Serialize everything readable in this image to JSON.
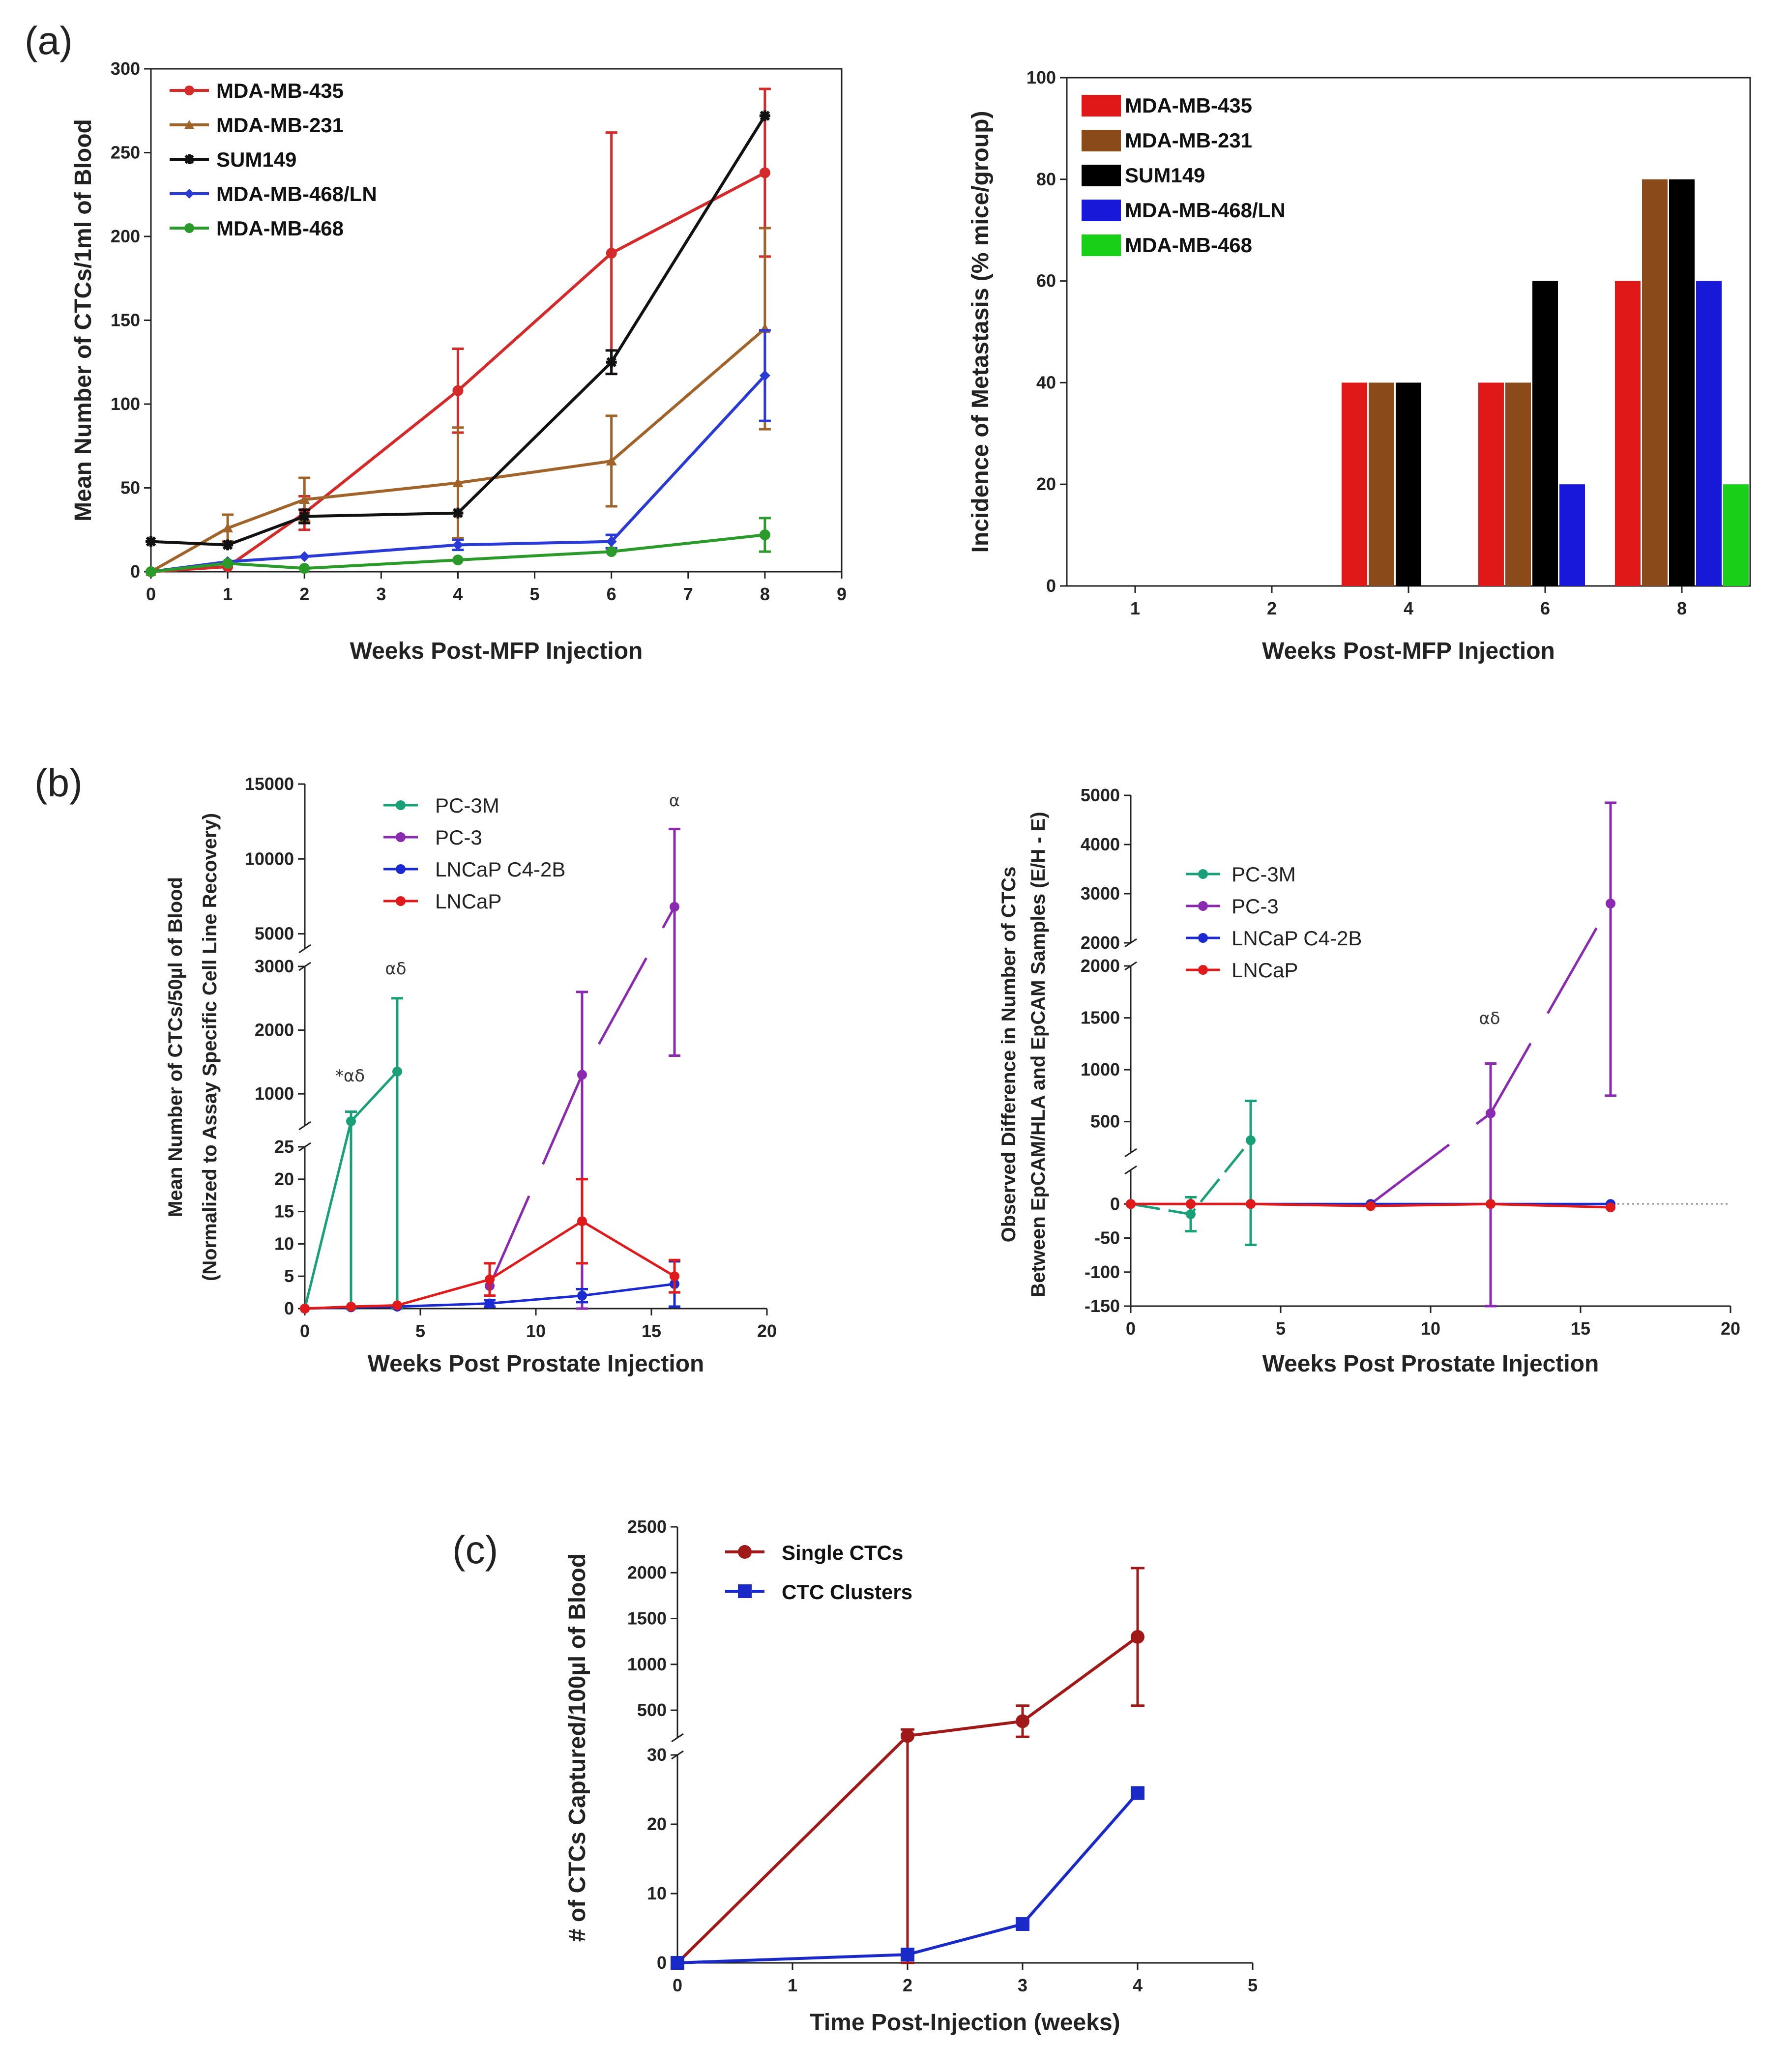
{
  "panels": {
    "a": "(a)",
    "b": "(b)",
    "c": "(c)"
  },
  "chart_data": [
    {
      "id": "a_left",
      "type": "line",
      "xlabel": "Weeks Post-MFP Injection",
      "ylabel": "Mean Number of CTCs/1ml of Blood",
      "xlim": [
        0,
        9
      ],
      "ylim": [
        0,
        300
      ],
      "xticks": [
        "0",
        "1",
        "2",
        "3",
        "4",
        "5",
        "6",
        "7",
        "8",
        "9"
      ],
      "yticks": [
        "0",
        "50",
        "100",
        "150",
        "200",
        "250",
        "300"
      ],
      "legend": "top-left",
      "series": [
        {
          "name": "MDA-MB-435",
          "color": "#d42a2a",
          "marker": "circle",
          "x": [
            0,
            1,
            2,
            4,
            6,
            8
          ],
          "y": [
            0,
            3,
            35,
            108,
            190,
            238
          ],
          "err": [
            0,
            0,
            10,
            25,
            72,
            50
          ]
        },
        {
          "name": "MDA-MB-231",
          "color": "#a0642a",
          "marker": "triangle",
          "x": [
            0,
            1,
            2,
            4,
            6,
            8
          ],
          "y": [
            0,
            26,
            43,
            53,
            66,
            145
          ],
          "err": [
            0,
            8,
            13,
            33,
            27,
            60
          ]
        },
        {
          "name": "SUM149",
          "color": "#111111",
          "marker": "star",
          "x": [
            0,
            1,
            2,
            4,
            8,
            6
          ],
          "y": [
            18,
            16,
            33,
            35,
            272,
            125
          ],
          "err": [
            0,
            0,
            4,
            0,
            0,
            7
          ]
        },
        {
          "name": "MDA-MB-468/LN",
          "color": "#2a3ad4",
          "marker": "diamond",
          "x": [
            0,
            1,
            2,
            4,
            6,
            8
          ],
          "y": [
            0,
            6,
            9,
            16,
            18,
            117
          ],
          "err": [
            0,
            0,
            0,
            3,
            4,
            27
          ]
        },
        {
          "name": "MDA-MB-468",
          "color": "#2a9a2a",
          "marker": "circle",
          "x": [
            0,
            1,
            2,
            4,
            6,
            8
          ],
          "y": [
            0,
            5,
            2,
            7,
            12,
            22
          ],
          "err": [
            0,
            0,
            0,
            0,
            0,
            10
          ]
        }
      ]
    },
    {
      "id": "a_right",
      "type": "bar",
      "xlabel": "Weeks Post-MFP Injection",
      "ylabel": "Incidence of Metastasis (% mice/group)",
      "categories": [
        "1",
        "2",
        "4",
        "6",
        "8"
      ],
      "ylim": [
        0,
        100
      ],
      "yticks": [
        "0",
        "20",
        "40",
        "60",
        "80",
        "100"
      ],
      "legend": "top-left",
      "series": [
        {
          "name": "MDA-MB-435",
          "color": "#e01818",
          "values": [
            0,
            0,
            40,
            40,
            60
          ]
        },
        {
          "name": "MDA-MB-231",
          "color": "#8a4a1a",
          "values": [
            0,
            0,
            40,
            40,
            80
          ]
        },
        {
          "name": "SUM149",
          "color": "#000000",
          "values": [
            0,
            0,
            40,
            60,
            80
          ]
        },
        {
          "name": "MDA-MB-468/LN",
          "color": "#1818d8",
          "values": [
            0,
            0,
            0,
            20,
            60
          ]
        },
        {
          "name": "MDA-MB-468",
          "color": "#18d018",
          "values": [
            0,
            0,
            0,
            0,
            20
          ]
        }
      ]
    },
    {
      "id": "b_left",
      "type": "line",
      "xlabel": "Weeks Post Prostate Injection",
      "ylabel": "Mean Number of CTCs/50µl of Blood",
      "ylabel2": "(Normalized to Assay Specific Cell Line Recovery)",
      "xlim": [
        0,
        20
      ],
      "xticks": [
        "0",
        "5",
        "10",
        "15",
        "20"
      ],
      "y_segments": [
        {
          "range": [
            0,
            25
          ],
          "ticks": [
            "0",
            "5",
            "10",
            "15",
            "20",
            "25"
          ]
        },
        {
          "range": [
            500,
            3000
          ],
          "ticks": [
            "1000",
            "2000",
            "3000"
          ]
        },
        {
          "range": [
            4000,
            15000
          ],
          "ticks": [
            "5000",
            "10000",
            "15000"
          ]
        }
      ],
      "annotations": [
        "*αδ",
        "αδ",
        "α"
      ],
      "legend": "top-left",
      "series": [
        {
          "name": "PC-3M",
          "color": "#1aa078",
          "x": [
            0,
            2,
            4
          ],
          "y": [
            0,
            570,
            1350
          ],
          "err": [
            0,
            150,
            1150
          ]
        },
        {
          "name": "PC-3",
          "color": "#8a2ab0",
          "x": [
            8,
            12,
            16
          ],
          "y": [
            3.5,
            1300,
            6800
          ],
          "err": [
            0,
            1300,
            5200
          ]
        },
        {
          "name": "LNCaP C4-2B",
          "color": "#1a2ad0",
          "x": [
            0,
            2,
            4,
            8,
            12,
            16
          ],
          "y": [
            0,
            0.2,
            0.3,
            0.8,
            2,
            3.8
          ],
          "err": [
            0,
            0,
            0,
            0.5,
            1,
            3.5
          ]
        },
        {
          "name": "LNCaP",
          "color": "#e01a1a",
          "x": [
            0,
            2,
            4,
            8,
            12,
            16
          ],
          "y": [
            0,
            0.3,
            0.5,
            4.5,
            13.5,
            5
          ],
          "err": [
            0,
            0,
            0,
            2.5,
            6.5,
            2.5
          ]
        }
      ]
    },
    {
      "id": "b_right",
      "type": "line",
      "xlabel": "Weeks Post Prostate Injection",
      "ylabel": "Observed Difference in Number of CTCs",
      "ylabel2": "Between EpCAM/HLA and EpCAM Samples (E/H - E)",
      "xlim": [
        0,
        20
      ],
      "xticks": [
        "0",
        "5",
        "10",
        "15",
        "20"
      ],
      "y_segments": [
        {
          "range": [
            -150,
            50
          ],
          "ticks": [
            "-150",
            "-100",
            "-50",
            "0"
          ]
        },
        {
          "range": [
            200,
            2000
          ],
          "ticks": [
            "500",
            "1000",
            "1500",
            "2000"
          ]
        },
        {
          "range": [
            2000,
            5000
          ],
          "ticks": [
            "2000",
            "3000",
            "4000",
            "5000"
          ]
        }
      ],
      "annotations": [
        "αδ"
      ],
      "legend": "middle-left",
      "series": [
        {
          "name": "PC-3M",
          "color": "#1aa078",
          "x": [
            0,
            2,
            4
          ],
          "y": [
            0,
            -15,
            320
          ],
          "err": [
            0,
            25,
            380
          ]
        },
        {
          "name": "PC-3",
          "color": "#8a2ab0",
          "x": [
            8,
            12,
            16
          ],
          "y": [
            0,
            580,
            2800
          ],
          "err": [
            0,
            480,
            2050
          ]
        },
        {
          "name": "LNCaP C4-2B",
          "color": "#1a2ad0",
          "x": [
            0,
            2,
            4,
            8,
            12,
            16
          ],
          "y": [
            0,
            0,
            0,
            0,
            0,
            0
          ],
          "err": [
            0,
            0,
            0,
            0,
            0,
            0
          ]
        },
        {
          "name": "LNCaP",
          "color": "#e01a1a",
          "x": [
            0,
            2,
            4,
            8,
            12,
            16
          ],
          "y": [
            0,
            0,
            0,
            -3,
            0,
            -5
          ],
          "err": [
            0,
            0,
            0,
            0,
            0,
            0
          ]
        }
      ]
    },
    {
      "id": "c",
      "type": "line",
      "xlabel": "Time Post-Injection (weeks)",
      "ylabel": "# of CTCs Captured/100µl of Blood",
      "xlim": [
        0,
        5
      ],
      "xticks": [
        "0",
        "1",
        "2",
        "3",
        "4",
        "5"
      ],
      "y_segments": [
        {
          "range": [
            0,
            30
          ],
          "ticks": [
            "0",
            "10",
            "20",
            "30"
          ]
        },
        {
          "range": [
            200,
            2500
          ],
          "ticks": [
            "500",
            "1000",
            "1500",
            "2000",
            "2500"
          ]
        }
      ],
      "legend": "top-left",
      "series": [
        {
          "name": "Single CTCs",
          "color": "#a01818",
          "marker": "circle",
          "x": [
            0,
            2,
            3,
            4
          ],
          "y": [
            0,
            220,
            380,
            1300
          ],
          "err": [
            0,
            70,
            170,
            750
          ]
        },
        {
          "name": "CTC Clusters",
          "color": "#1a2ac8",
          "marker": "square",
          "x": [
            0,
            2,
            3,
            4
          ],
          "y": [
            0,
            1.2,
            5.6,
            24.5
          ],
          "err": [
            0,
            0,
            0,
            0
          ]
        }
      ]
    }
  ]
}
